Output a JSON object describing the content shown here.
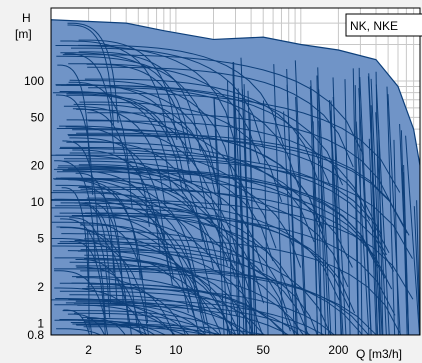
{
  "chart_data": {
    "type": "area",
    "title": "",
    "badge": "NK, NKE",
    "ylabel": "H",
    "ylabel_unit": "[m]",
    "xlabel": "Q [m3/h]",
    "x_scale": "log",
    "y_scale": "log",
    "xlim": [
      1,
      900
    ],
    "ylim": [
      0.8,
      400
    ],
    "x_ticks": [
      2,
      5,
      10,
      50,
      200
    ],
    "x_tick_labels": [
      "2",
      "5",
      "10",
      "50",
      "200"
    ],
    "y_ticks": [
      0.8,
      1,
      2,
      5,
      10,
      20,
      50,
      100
    ],
    "y_tick_labels": [
      "0.8",
      "1",
      "2",
      "5",
      "10",
      "20",
      "50",
      "100"
    ],
    "grid": true,
    "colors": {
      "fill": "#7094c7",
      "line": "#0d3f7a",
      "grid": "#c8c8c8",
      "frame": "#000000",
      "background": "#f2f2f2",
      "plot_background": "#ffffff"
    },
    "envelope": {
      "top_boundary_q": [
        1,
        4,
        8,
        20,
        50,
        100,
        200,
        400,
        600,
        800,
        900
      ],
      "top_boundary_h": [
        320,
        300,
        260,
        220,
        230,
        200,
        180,
        150,
        90,
        40,
        20
      ]
    }
  }
}
